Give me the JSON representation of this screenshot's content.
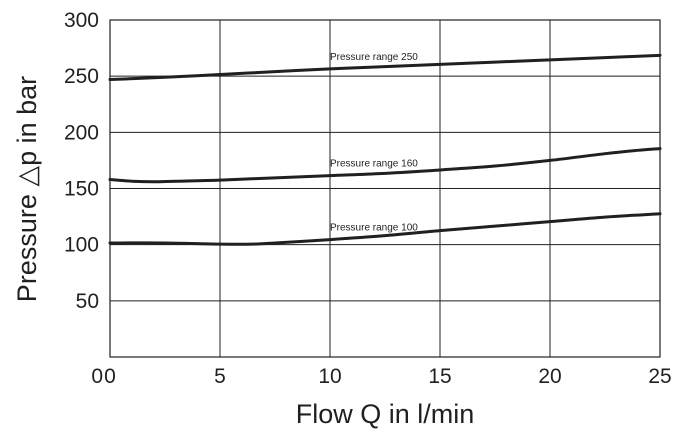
{
  "chart_data": {
    "type": "line",
    "title": "",
    "xlabel": "Flow Q in l/min",
    "ylabel": "Pressure △p in bar",
    "xlim": [
      0,
      25
    ],
    "ylim": [
      0,
      300
    ],
    "xticks": [
      "0",
      "5",
      "10",
      "15",
      "20",
      "25"
    ],
    "yticks": [
      "0",
      "50",
      "100",
      "150",
      "200",
      "250",
      "300"
    ],
    "grid": true,
    "legend": "none",
    "series": [
      {
        "name": "Pressure range 250",
        "x": [
          0,
          2.5,
          5,
          7.5,
          10,
          12.5,
          15,
          17.5,
          20,
          22.5,
          25
        ],
        "y": [
          247,
          249,
          251.5,
          254,
          256.5,
          258.5,
          260.5,
          262.5,
          264.5,
          266.5,
          268.5
        ]
      },
      {
        "name": "Pressure range 160",
        "x": [
          0,
          1,
          2,
          3,
          5,
          7.5,
          10,
          12.5,
          15,
          17.5,
          20,
          22.5,
          24,
          25
        ],
        "y": [
          158,
          156.5,
          156,
          156.5,
          157.5,
          159.5,
          161.5,
          163.5,
          166.5,
          170,
          175,
          181,
          184,
          185.5
        ]
      },
      {
        "name": "Pressure range 100",
        "x": [
          0,
          2.5,
          5,
          6.5,
          7.5,
          10,
          12.5,
          15,
          17.5,
          20,
          22.5,
          25
        ],
        "y": [
          101.5,
          101.5,
          100.5,
          100.5,
          101.5,
          104.5,
          108,
          112.5,
          116.5,
          120.5,
          124.5,
          127.5
        ]
      }
    ]
  }
}
